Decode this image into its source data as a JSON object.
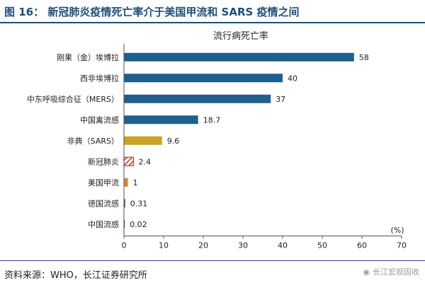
{
  "figure": {
    "title": "图 16：  新冠肺炎疫情死亡率介于美国甲流和 SARS 疫情之间",
    "source": "资料来源：WHO，长江证券研究所",
    "watermark": "长江宏观固收"
  },
  "colors": {
    "title": "#1f4e79",
    "bar_default": "#1f5f8b",
    "bar_sars": "#c9a227",
    "bar_covid": "#c0392b",
    "bar_h1n1": "#d9843b"
  },
  "chart_data": {
    "type": "bar",
    "orientation": "horizontal",
    "title": "流行病死亡率",
    "unit": "(%)",
    "xlim": [
      0,
      70
    ],
    "xticks": [
      0,
      10,
      20,
      30,
      40,
      50,
      60,
      70
    ],
    "grid": false,
    "categories": [
      "刚果（金）埃博拉",
      "西非埃博拉",
      "中东呼吸综合征（MERS）",
      "中国禽流感",
      "非典（SARS）",
      "新冠肺炎",
      "美国甲流",
      "德国流感",
      "中国流感"
    ],
    "values": [
      58,
      40,
      37,
      18.7,
      9.6,
      2.4,
      1,
      0.31,
      0.02
    ],
    "value_labels": [
      "58",
      "40",
      "37",
      "18.7",
      "9.6",
      "2.4",
      "1",
      "0.31",
      "0.02"
    ],
    "bar_colors": [
      "#1f5f8b",
      "#1f5f8b",
      "#1f5f8b",
      "#1f5f8b",
      "#c9a227",
      "#c0392b",
      "#d9843b",
      "#1f5f8b",
      "#1f5f8b"
    ],
    "hatched": [
      false,
      false,
      false,
      false,
      false,
      true,
      false,
      false,
      false
    ]
  }
}
